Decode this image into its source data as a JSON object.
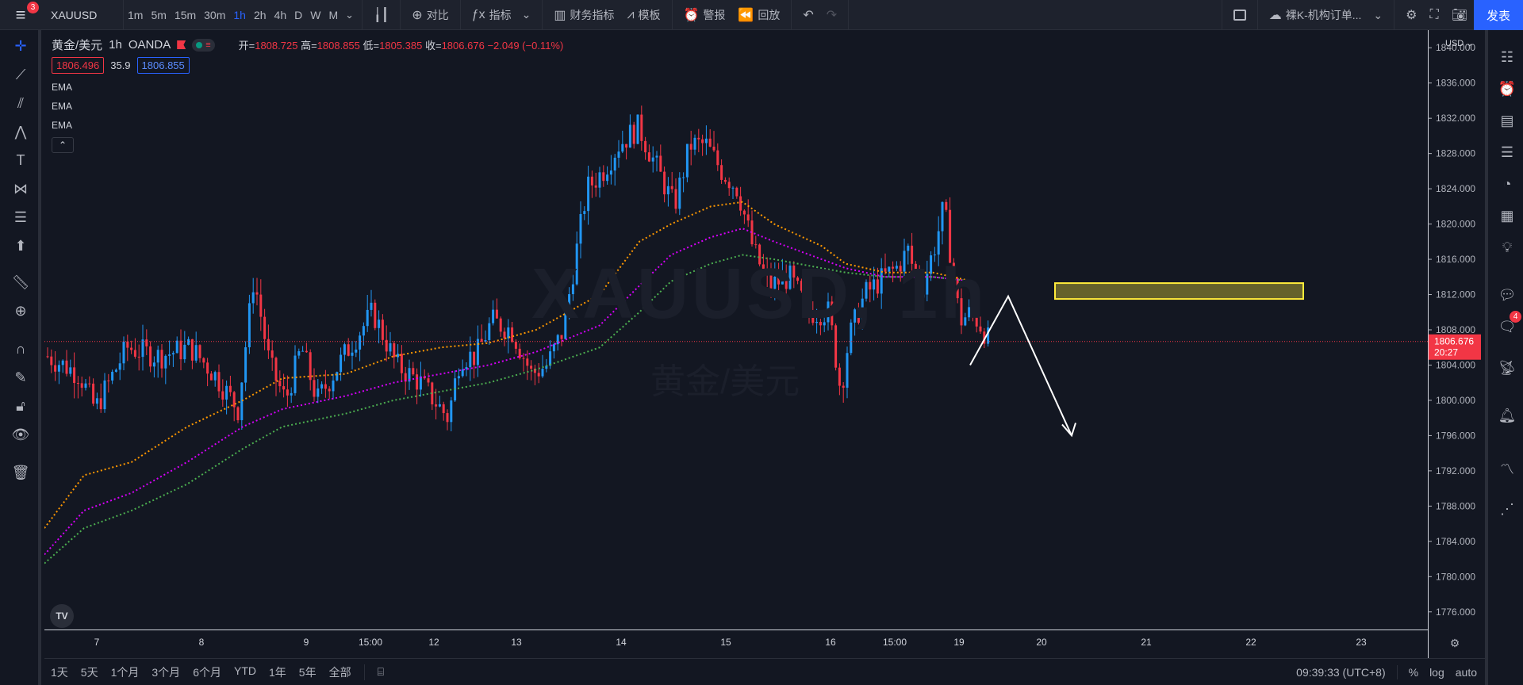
{
  "topbar": {
    "menu_badge": "3",
    "symbol": "XAUUSD",
    "timeframes": [
      "1m",
      "5m",
      "15m",
      "30m",
      "1h",
      "2h",
      "4h",
      "D",
      "W",
      "M"
    ],
    "active_timeframe": "1h",
    "compare_label": "对比",
    "indicators_label": "指标",
    "financials_label": "财务指标",
    "templates_label": "模板",
    "alert_label": "警报",
    "replay_label": "回放",
    "layout_name": "裸K-机构订单...",
    "publish_label": "发表"
  },
  "legend": {
    "symbol_name": "黄金/美元",
    "interval": "1h",
    "exchange": "OANDA",
    "open_label": "开=",
    "open": "1808.725",
    "high_label": "高=",
    "high": "1808.855",
    "low_label": "低=",
    "low": "1805.385",
    "close_label": "收=",
    "close": "1806.676",
    "change": "−2.049 (−0.11%)",
    "bid": "1806.496",
    "spread": "35.9",
    "ask": "1806.855",
    "indicators": [
      "EMA",
      "EMA",
      "EMA"
    ],
    "collapse_icon": "chevron-up-icon"
  },
  "watermark": {
    "main": "XAUUSD, 1h",
    "sub": "黄金/美元"
  },
  "price_axis": {
    "currency": "USD",
    "ticks": [
      "1840.000",
      "1836.000",
      "1832.000",
      "1828.000",
      "1824.000",
      "1820.000",
      "1816.000",
      "1812.000",
      "1808.000",
      "1804.000",
      "1800.000",
      "1796.000",
      "1792.000",
      "1788.000",
      "1784.000",
      "1780.000",
      "1776.000"
    ],
    "last_price": "1806.676",
    "countdown": "20:27"
  },
  "time_axis": {
    "labels": [
      "7",
      "8",
      "9",
      "15:00",
      "12",
      "13",
      "14",
      "15",
      "16",
      "15:00",
      "19",
      "20",
      "21",
      "22",
      "23"
    ]
  },
  "bottombar": {
    "ranges": [
      "1天",
      "5天",
      "1个月",
      "3个月",
      "6个月",
      "YTD",
      "1年",
      "5年",
      "全部"
    ],
    "clock": "09:39:33 (UTC+8)",
    "percent_label": "%",
    "log_label": "log",
    "auto_label": "auto"
  },
  "right_panel": {
    "chat_badge": "4"
  },
  "colors": {
    "up": "#2196f3",
    "down": "#f23645",
    "ema1": "#ff9800",
    "ema2": "#d500f9",
    "ema3": "#4caf50",
    "zone": "#ffeb3b",
    "accent": "#2962ff"
  },
  "chart_data": {
    "type": "candlestick",
    "symbol": "XAUUSD",
    "interval": "1h",
    "ylim": [
      1774,
      1842
    ],
    "ema_last": [
      1813.5,
      1814,
      1814.5
    ],
    "zone": {
      "from": 1811.5,
      "to": 1813.3
    },
    "projection": [
      1811.8,
      1796
    ]
  }
}
